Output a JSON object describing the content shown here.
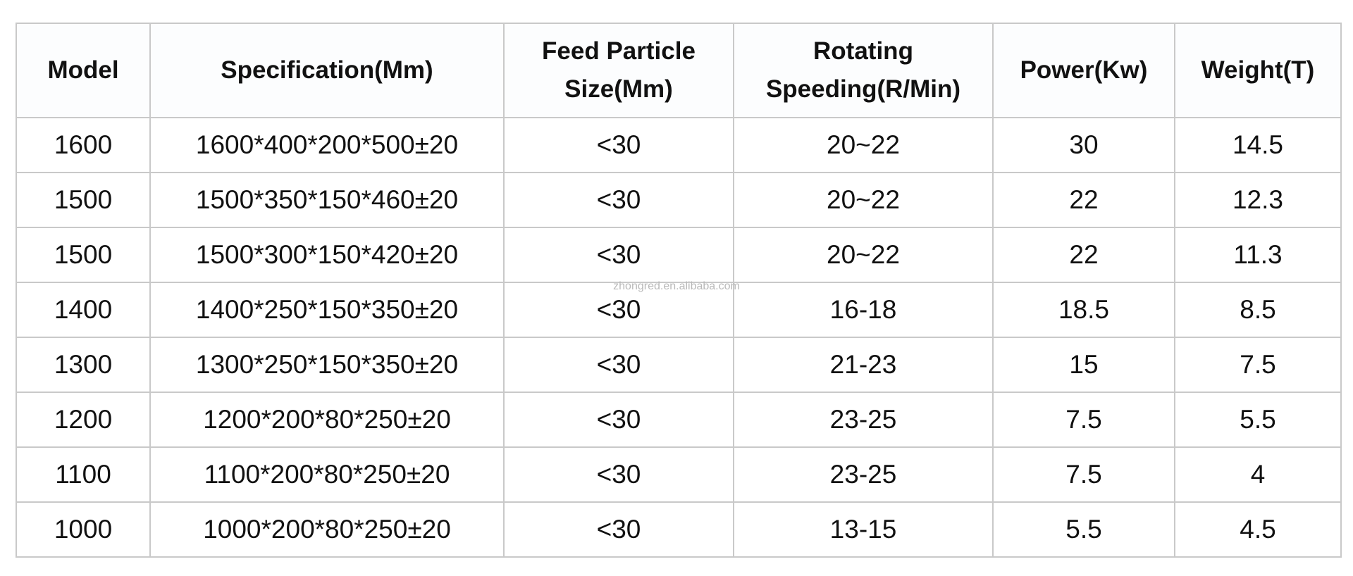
{
  "table": {
    "headers": [
      "Model",
      "Specification(Mm)",
      "Feed Particle\nSize(Mm)",
      "Rotating\nSpeeding(R/Min)",
      "Power(Kw)",
      "Weight(T)"
    ],
    "rows": [
      [
        "1600",
        "1600*400*200*500±20",
        "<30",
        "20~22",
        "30",
        "14.5"
      ],
      [
        "1500",
        "1500*350*150*460±20",
        "<30",
        "20~22",
        "22",
        "12.3"
      ],
      [
        "1500",
        "1500*300*150*420±20",
        "<30",
        "20~22",
        "22",
        "11.3"
      ],
      [
        "1400",
        "1400*250*150*350±20",
        "<30",
        "16-18",
        "18.5",
        "8.5"
      ],
      [
        "1300",
        "1300*250*150*350±20",
        "<30",
        "21-23",
        "15",
        "7.5"
      ],
      [
        "1200",
        "1200*200*80*250±20",
        "<30",
        "23-25",
        "7.5",
        "5.5"
      ],
      [
        "1100",
        "1100*200*80*250±20",
        "<30",
        "23-25",
        "7.5",
        "4"
      ],
      [
        "1000",
        "1000*200*80*250±20",
        "<30",
        "13-15",
        "5.5",
        "4.5"
      ]
    ]
  },
  "watermark": "zhongred.en.alibaba.com",
  "colors": {
    "border": "#c9c9c9",
    "text": "#111111",
    "watermark": "#b9b9b9"
  }
}
